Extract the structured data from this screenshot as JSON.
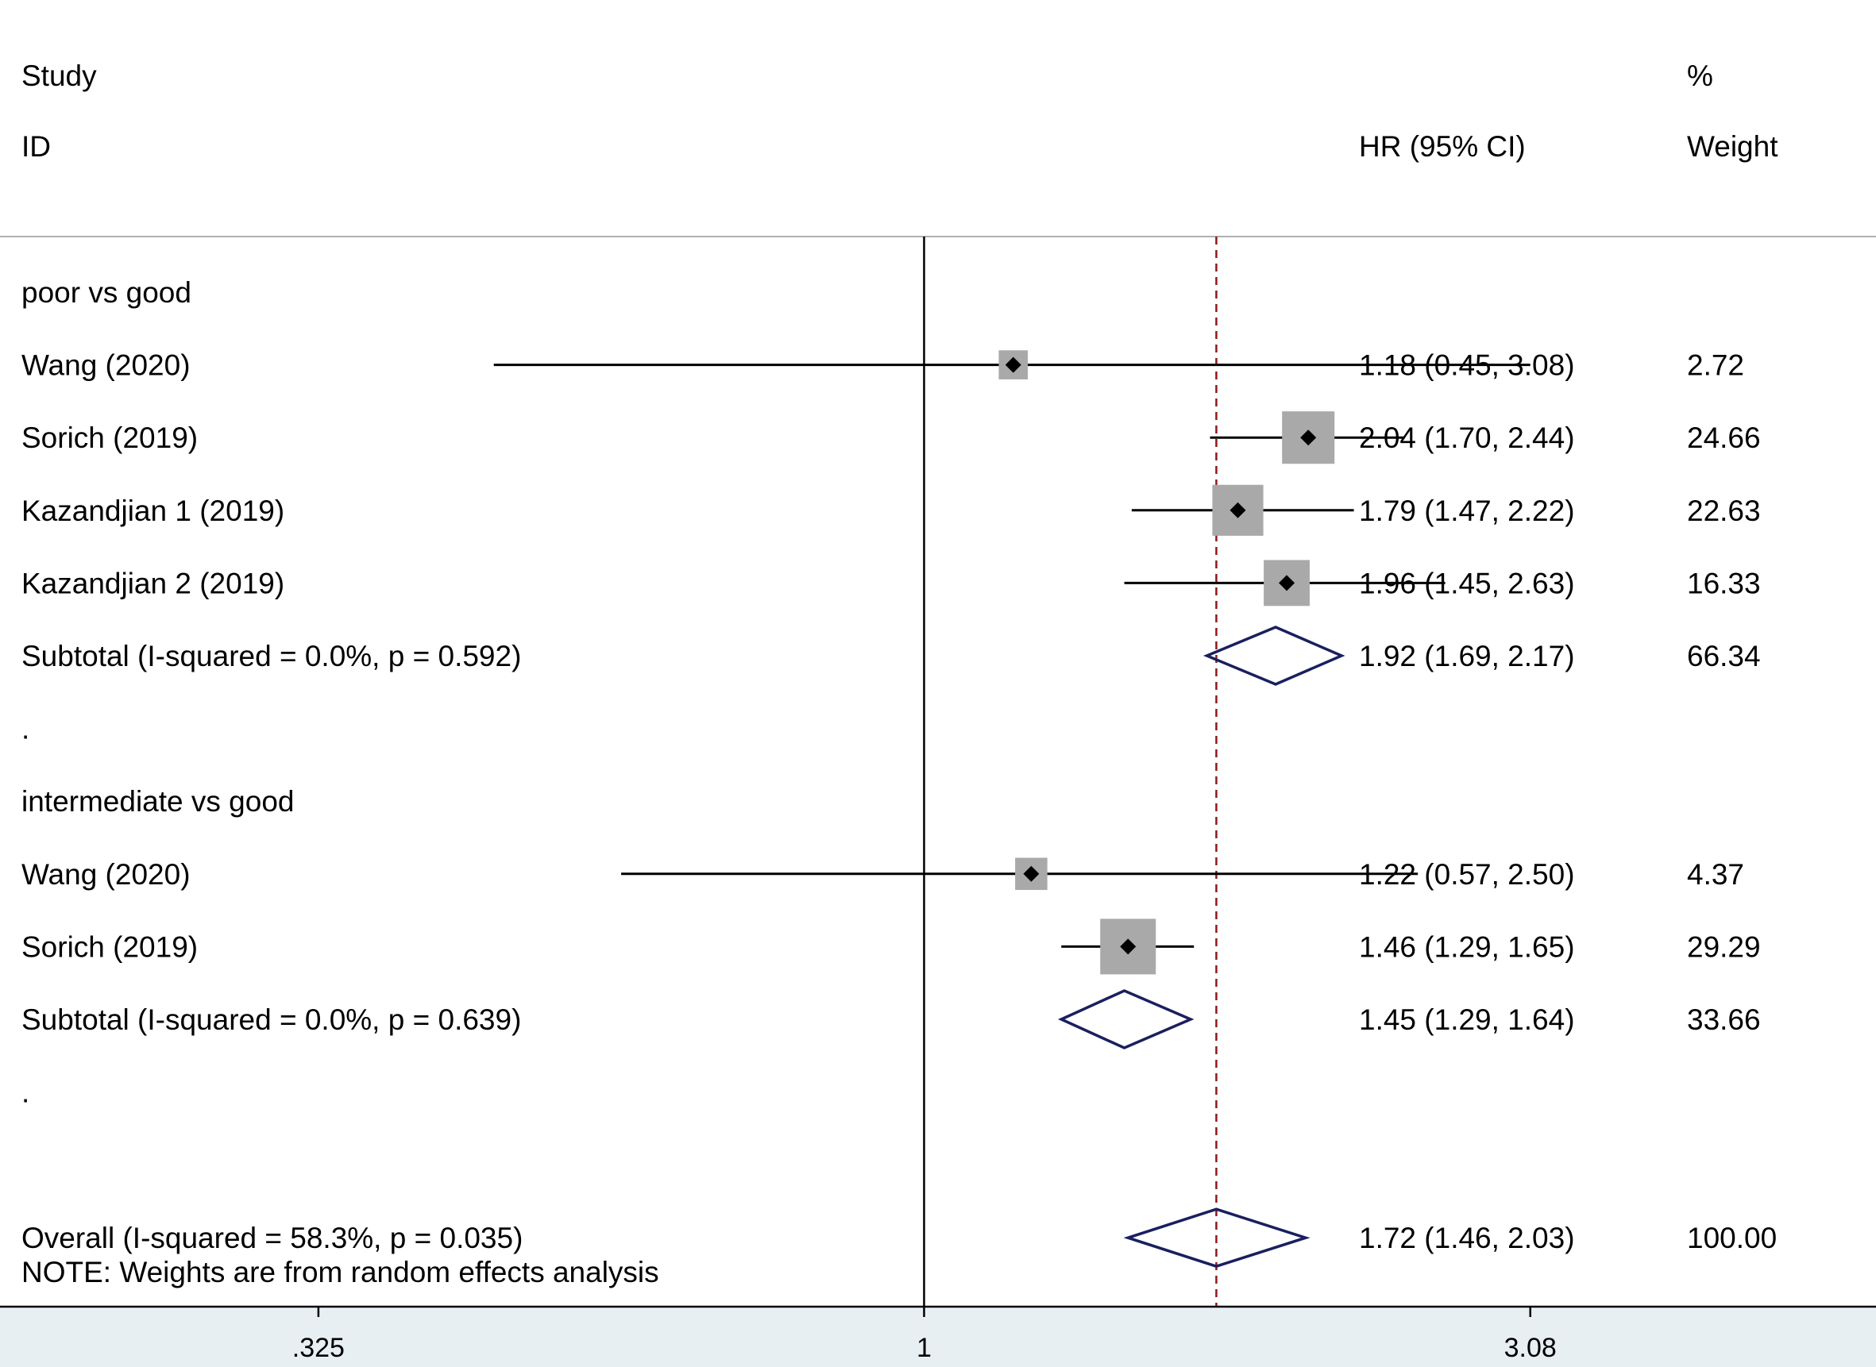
{
  "header": {
    "study_line1": "Study",
    "study_line2": "ID",
    "hr_label": "HR (95% CI)",
    "weight_line1": "%",
    "weight_line2": "Weight"
  },
  "note": "NOTE: Weights are from random effects analysis",
  "chart_data": {
    "type": "forest",
    "x_scale": "log",
    "x_ticks": [
      {
        "value": 0.325,
        "label": ".325"
      },
      {
        "value": 1,
        "label": "1"
      },
      {
        "value": 3.08,
        "label": "3.08"
      }
    ],
    "xlim": [
      0.18,
      5.85
    ],
    "null_line": 1,
    "overall_line": 1.72,
    "colors": {
      "marker_box": "#a9a9a9",
      "point": "#000000",
      "diamond": "#1a1f5e",
      "overall_line": "#8b1a1a",
      "axis_band": "#e8eff3"
    },
    "rows": [
      {
        "kind": "group",
        "label": "poor vs good"
      },
      {
        "kind": "study",
        "label": "Wang  (2020)",
        "hr": 1.18,
        "lo": 0.45,
        "hi": 3.08,
        "ci_text": "1.18 (0.45, 3.08)",
        "weight": 2.72,
        "weight_text": "2.72"
      },
      {
        "kind": "study",
        "label": "Sorich  (2019)",
        "hr": 2.04,
        "lo": 1.7,
        "hi": 2.44,
        "ci_text": "2.04 (1.70, 2.44)",
        "weight": 24.66,
        "weight_text": "24.66"
      },
      {
        "kind": "study",
        "label": "Kazandjian 1 (2019)",
        "hr": 1.79,
        "lo": 1.47,
        "hi": 2.22,
        "ci_text": "1.79 (1.47, 2.22)",
        "weight": 22.63,
        "weight_text": "22.63"
      },
      {
        "kind": "study",
        "label": "Kazandjian 2  (2019)",
        "hr": 1.96,
        "lo": 1.45,
        "hi": 2.63,
        "ci_text": "1.96 (1.45, 2.63)",
        "weight": 16.33,
        "weight_text": "16.33"
      },
      {
        "kind": "subtotal",
        "label": "Subtotal  (I-squared = 0.0%, p = 0.592)",
        "hr": 1.92,
        "lo": 1.69,
        "hi": 2.17,
        "ci_text": "1.92 (1.69, 2.17)",
        "weight": 66.34,
        "weight_text": "66.34"
      },
      {
        "kind": "spacer",
        "label": "."
      },
      {
        "kind": "group",
        "label": "intermediate vs good"
      },
      {
        "kind": "study",
        "label": "Wang  (2020)",
        "hr": 1.22,
        "lo": 0.57,
        "hi": 2.5,
        "ci_text": "1.22 (0.57, 2.50)",
        "weight": 4.37,
        "weight_text": "4.37"
      },
      {
        "kind": "study",
        "label": "Sorich  (2019)",
        "hr": 1.46,
        "lo": 1.29,
        "hi": 1.65,
        "ci_text": "1.46 (1.29, 1.65)",
        "weight": 29.29,
        "weight_text": "29.29"
      },
      {
        "kind": "subtotal",
        "label": "Subtotal  (I-squared = 0.0%, p = 0.639)",
        "hr": 1.45,
        "lo": 1.29,
        "hi": 1.64,
        "ci_text": "1.45 (1.29, 1.64)",
        "weight": 33.66,
        "weight_text": "33.66"
      },
      {
        "kind": "spacer",
        "label": "."
      },
      {
        "kind": "overall",
        "label": "Overall  (I-squared = 58.3%, p = 0.035)",
        "hr": 1.72,
        "lo": 1.46,
        "hi": 2.03,
        "ci_text": "1.72 (1.46, 2.03)",
        "weight": 100.0,
        "weight_text": "100.00"
      }
    ]
  }
}
